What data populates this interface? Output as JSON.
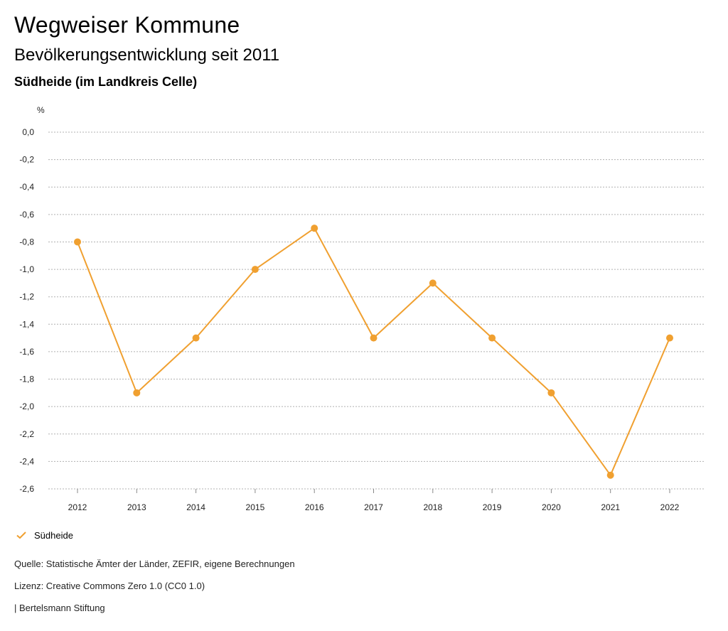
{
  "header": {
    "title": "Wegweiser Kommune",
    "subtitle": "Bevölkerungsentwicklung seit 2011",
    "region": "Südheide (im Landkreis Celle)"
  },
  "colors": {
    "series": "#f0a030",
    "grid": "#b0b0b0",
    "text": "#222222"
  },
  "chart_data": {
    "type": "line",
    "ylabel": "%",
    "x": [
      "2012",
      "2013",
      "2014",
      "2015",
      "2016",
      "2017",
      "2018",
      "2019",
      "2020",
      "2021",
      "2022"
    ],
    "ylim": [
      -2.6,
      0.0
    ],
    "yticks": [
      "0,0",
      "-0,2",
      "-0,4",
      "-0,6",
      "-0,8",
      "-1,0",
      "-1,2",
      "-1,4",
      "-1,6",
      "-1,8",
      "-2,0",
      "-2,2",
      "-2,4",
      "-2,6"
    ],
    "ytick_values": [
      0.0,
      -0.2,
      -0.4,
      -0.6,
      -0.8,
      -1.0,
      -1.2,
      -1.4,
      -1.6,
      -1.8,
      -2.0,
      -2.2,
      -2.4,
      -2.6
    ],
    "grid": true,
    "legend": "bottom-left",
    "series": [
      {
        "name": "Südheide",
        "values": [
          -0.8,
          -1.9,
          -1.5,
          -1.0,
          -0.7,
          -1.5,
          -1.1,
          -1.5,
          -1.9,
          -2.5,
          -1.5
        ]
      }
    ]
  },
  "legend": {
    "label": "Südheide"
  },
  "footer": {
    "source": "Quelle: Statistische Ämter der Länder, ZEFIR, eigene Berechnungen",
    "license": "Lizenz: Creative Commons Zero 1.0 (CC0 1.0)",
    "brand": "| Bertelsmann Stiftung"
  }
}
